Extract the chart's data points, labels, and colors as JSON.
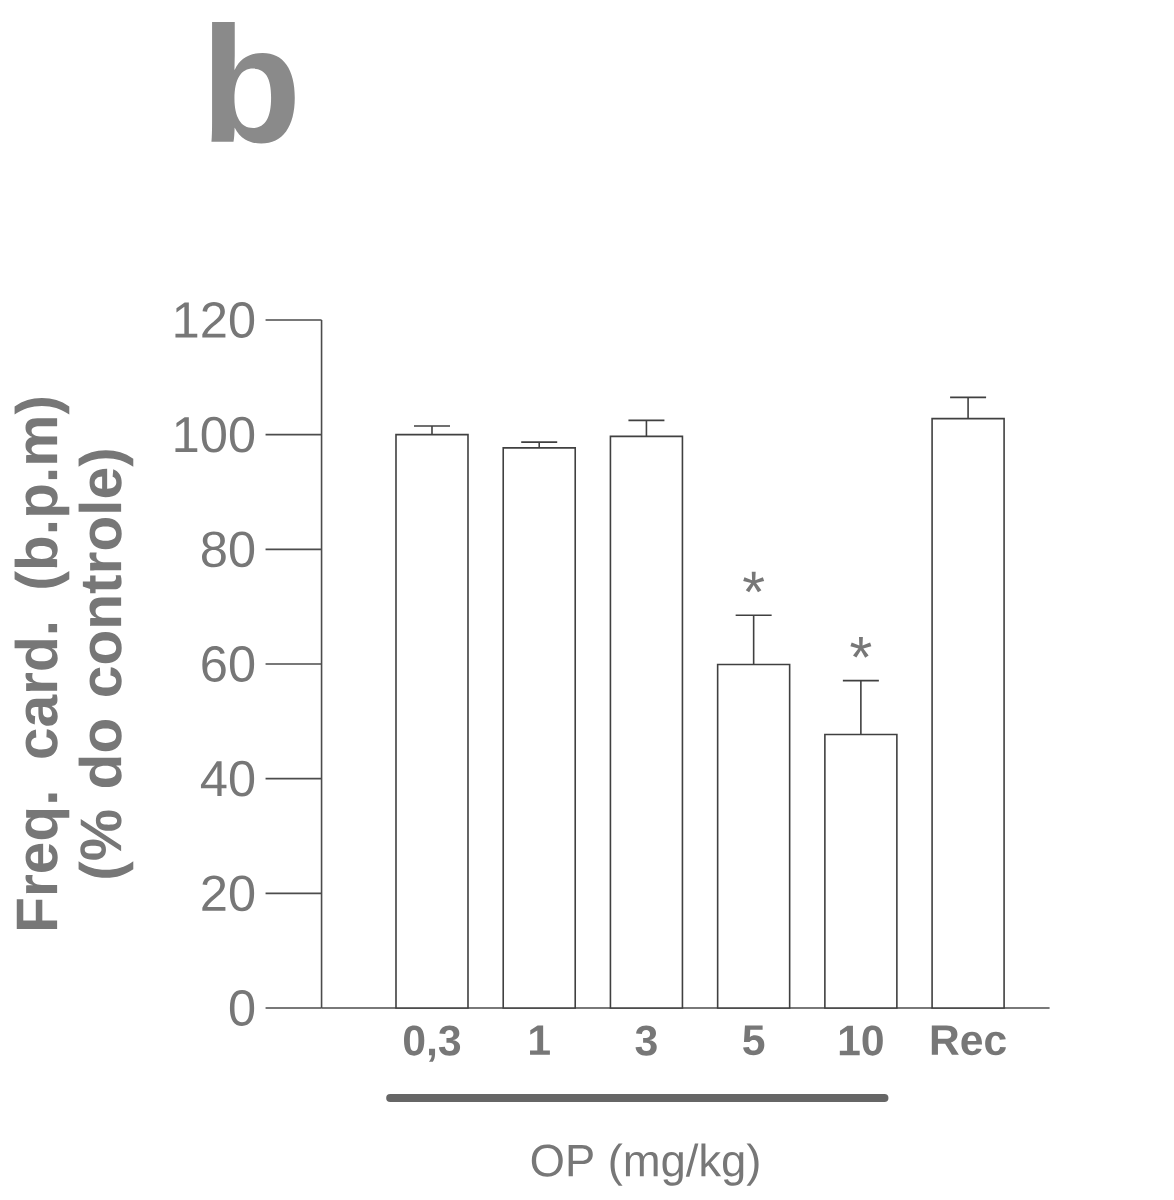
{
  "chart_data": {
    "type": "bar",
    "title": "b",
    "xlabel": "OP (mg/kg)",
    "ylabel": "Freq. card. (b.p.m) (% do controle)",
    "categories": [
      "0,3",
      "1",
      "3",
      "5",
      "10",
      "Rec"
    ],
    "values": [
      100,
      97.7,
      99.7,
      59.9,
      47.7,
      102.8
    ],
    "errors": [
      1.5,
      1,
      2.8,
      8.6,
      9.4,
      3.7
    ],
    "color": "#ffffff",
    "ylim": [
      0,
      120
    ],
    "yticks": [
      0,
      20,
      40,
      60,
      80,
      100,
      120
    ],
    "grid": false,
    "annotations": [
      {
        "text": "*",
        "x": "5",
        "y": 68.5
      },
      {
        "text": "*",
        "x": "10",
        "y": 57.1
      }
    ]
  }
}
